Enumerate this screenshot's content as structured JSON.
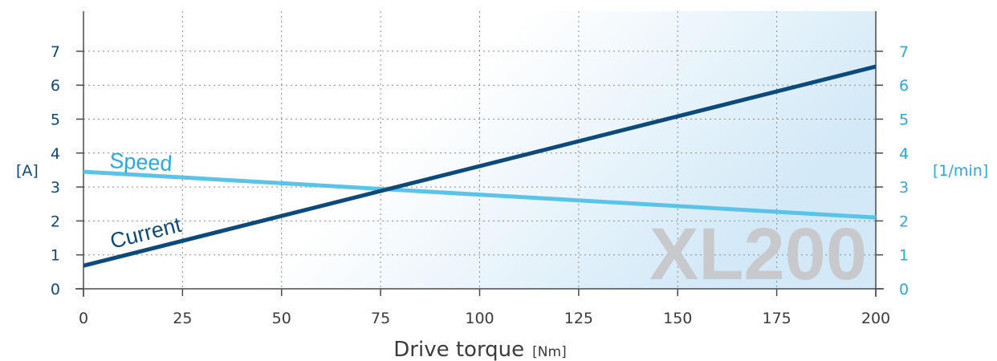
{
  "chart_data": {
    "type": "line",
    "watermark": "XL200",
    "xlabel": "Drive torque",
    "xlabel_unit": "[Nm]",
    "ylabel_left": "[A]",
    "ylabel_right": "[1/min]",
    "xlim": [
      0,
      200
    ],
    "ylim": [
      0,
      7
    ],
    "x_ticks": [
      "0",
      "25",
      "50",
      "75",
      "100",
      "125",
      "150",
      "175",
      "200"
    ],
    "y_ticks_left": [
      "0",
      "1",
      "2",
      "3",
      "4",
      "5",
      "6",
      "7"
    ],
    "y_ticks_right": [
      "0",
      "1",
      "2",
      "3",
      "4",
      "5",
      "6",
      "7"
    ],
    "grid": true,
    "series": [
      {
        "name": "Current",
        "axis": "left",
        "color": "#0b4a7a",
        "x": [
          0,
          200
        ],
        "y": [
          0.68,
          6.55
        ]
      },
      {
        "name": "Speed",
        "axis": "right",
        "color": "#5bc3ea",
        "x": [
          0,
          200
        ],
        "y": [
          3.45,
          2.1
        ]
      }
    ]
  }
}
